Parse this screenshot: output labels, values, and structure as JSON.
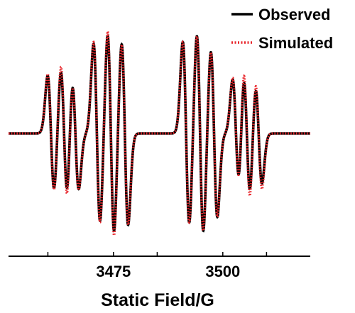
{
  "chart_data": {
    "type": "line",
    "title": "",
    "xlabel": "Static Field/G",
    "ylabel": "",
    "xlim": [
      3451,
      3520
    ],
    "ylim": [
      -1.1,
      1.1
    ],
    "x_ticks": [
      3475,
      3500
    ],
    "x_minor_ticks": [
      3460,
      3485,
      3510
    ],
    "grid": false,
    "legend_position": "top-right",
    "series": [
      {
        "name": "Observed",
        "style": "solid",
        "color": "#000000",
        "lines": [
          {
            "center": 3460.7,
            "amplitude": 0.58
          },
          {
            "center": 3463.7,
            "amplitude": 0.64
          },
          {
            "center": 3466.3,
            "amplitude": 0.56
          },
          {
            "center": 3471.2,
            "amplitude": 0.9
          },
          {
            "center": 3474.4,
            "amplitude": 1.0
          },
          {
            "center": 3477.6,
            "amplitude": 0.92
          },
          {
            "center": 3491.6,
            "amplitude": 0.92
          },
          {
            "center": 3494.8,
            "amplitude": 1.0
          },
          {
            "center": 3498.0,
            "amplitude": 0.84
          },
          {
            "center": 3503.0,
            "amplitude": 0.54
          },
          {
            "center": 3505.5,
            "amplitude": 0.62
          },
          {
            "center": 3508.2,
            "amplitude": 0.5
          }
        ]
      },
      {
        "name": "Simulated",
        "style": "dotted",
        "color": "#e8262c",
        "lines": [
          {
            "center": 3460.7,
            "amplitude": 0.6
          },
          {
            "center": 3463.7,
            "amplitude": 0.7
          },
          {
            "center": 3466.3,
            "amplitude": 0.57
          },
          {
            "center": 3471.2,
            "amplitude": 0.92
          },
          {
            "center": 3474.4,
            "amplitude": 1.05
          },
          {
            "center": 3477.6,
            "amplitude": 0.92
          },
          {
            "center": 3491.6,
            "amplitude": 0.92
          },
          {
            "center": 3494.8,
            "amplitude": 1.0
          },
          {
            "center": 3498.0,
            "amplitude": 0.84
          },
          {
            "center": 3503.0,
            "amplitude": 0.56
          },
          {
            "center": 3505.5,
            "amplitude": 0.7
          },
          {
            "center": 3508.2,
            "amplitude": 0.56
          }
        ]
      }
    ],
    "line_shape": "first-derivative",
    "linewidth_G": 0.75
  }
}
